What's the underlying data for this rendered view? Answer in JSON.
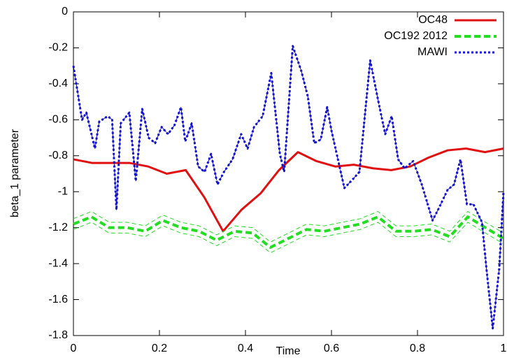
{
  "chart_data": {
    "type": "line",
    "xlabel": "Time",
    "ylabel": "beta_1 parameter",
    "xlim": [
      0,
      1
    ],
    "ylim": [
      -1.8,
      0
    ],
    "xticks": [
      0,
      0.2,
      0.4,
      0.6,
      0.8,
      1
    ],
    "yticks": [
      -1.8,
      -1.6,
      -1.4,
      -1.2,
      -1,
      -0.8,
      -0.6,
      -0.4,
      -0.2,
      0
    ],
    "legend": "top-right",
    "series": [
      {
        "name": "OC48",
        "color": "#e01010",
        "style": "solid",
        "x": [
          0,
          0.043,
          0.087,
          0.13,
          0.174,
          0.217,
          0.261,
          0.304,
          0.348,
          0.391,
          0.435,
          0.478,
          0.522,
          0.565,
          0.609,
          0.652,
          0.696,
          0.739,
          0.783,
          0.826,
          0.87,
          0.913,
          0.957,
          1
        ],
        "values": [
          -0.82,
          -0.84,
          -0.84,
          -0.84,
          -0.86,
          -0.9,
          -0.88,
          -1.03,
          -1.22,
          -1.1,
          -1.01,
          -0.88,
          -0.78,
          -0.83,
          -0.86,
          -0.85,
          -0.87,
          -0.88,
          -0.86,
          -0.81,
          -0.77,
          -0.76,
          -0.78,
          -0.76
        ]
      },
      {
        "name": "OC192 2012",
        "color": "#22dd22",
        "style": "dashed",
        "x": [
          0,
          0.042,
          0.083,
          0.125,
          0.167,
          0.208,
          0.25,
          0.292,
          0.333,
          0.375,
          0.417,
          0.458,
          0.5,
          0.542,
          0.583,
          0.625,
          0.667,
          0.708,
          0.75,
          0.792,
          0.833,
          0.875,
          0.917,
          0.958,
          1
        ],
        "values": [
          -1.18,
          -1.14,
          -1.2,
          -1.2,
          -1.22,
          -1.16,
          -1.2,
          -1.22,
          -1.27,
          -1.22,
          -1.23,
          -1.31,
          -1.26,
          -1.21,
          -1.22,
          -1.2,
          -1.18,
          -1.14,
          -1.22,
          -1.22,
          -1.21,
          -1.25,
          -1.14,
          -1.2,
          -1.26
        ],
        "errors": [
          0.03,
          0.03,
          0.03,
          0.03,
          0.03,
          0.03,
          0.03,
          0.03,
          0.03,
          0.03,
          0.03,
          0.03,
          0.03,
          0.03,
          0.03,
          0.03,
          0.03,
          0.03,
          0.03,
          0.03,
          0.03,
          0.03,
          0.03,
          0.03,
          0.03
        ]
      },
      {
        "name": "MAWI",
        "color": "#1010d0",
        "style": "dotted",
        "x": [
          0,
          0.01,
          0.02,
          0.03,
          0.05,
          0.06,
          0.08,
          0.09,
          0.1,
          0.11,
          0.13,
          0.145,
          0.16,
          0.175,
          0.19,
          0.205,
          0.22,
          0.235,
          0.25,
          0.26,
          0.275,
          0.29,
          0.305,
          0.32,
          0.335,
          0.35,
          0.37,
          0.39,
          0.405,
          0.42,
          0.44,
          0.46,
          0.48,
          0.49,
          0.51,
          0.53,
          0.545,
          0.56,
          0.575,
          0.59,
          0.6,
          0.63,
          0.65,
          0.665,
          0.69,
          0.71,
          0.725,
          0.74,
          0.755,
          0.77,
          0.79,
          0.81,
          0.835,
          0.85,
          0.87,
          0.885,
          0.9,
          0.915,
          0.93,
          0.95,
          0.96,
          0.975,
          0.99,
          1
        ],
        "values": [
          -0.3,
          -0.45,
          -0.6,
          -0.56,
          -0.76,
          -0.61,
          -0.58,
          -0.6,
          -1.1,
          -0.62,
          -0.56,
          -0.94,
          -0.54,
          -0.7,
          -0.73,
          -0.64,
          -0.68,
          -0.63,
          -0.53,
          -0.72,
          -0.62,
          -0.86,
          -0.89,
          -0.79,
          -0.96,
          -0.89,
          -0.82,
          -0.68,
          -0.76,
          -0.64,
          -0.58,
          -0.34,
          -0.79,
          -0.89,
          -0.19,
          -0.33,
          -0.47,
          -0.73,
          -0.71,
          -0.53,
          -0.66,
          -0.98,
          -0.93,
          -0.89,
          -0.27,
          -0.51,
          -0.68,
          -0.58,
          -0.82,
          -0.87,
          -0.83,
          -0.96,
          -1.16,
          -1.09,
          -0.99,
          -0.96,
          -0.82,
          -1.07,
          -1.07,
          -1.17,
          -1.42,
          -1.76,
          -1.43,
          -1
        ]
      }
    ]
  }
}
